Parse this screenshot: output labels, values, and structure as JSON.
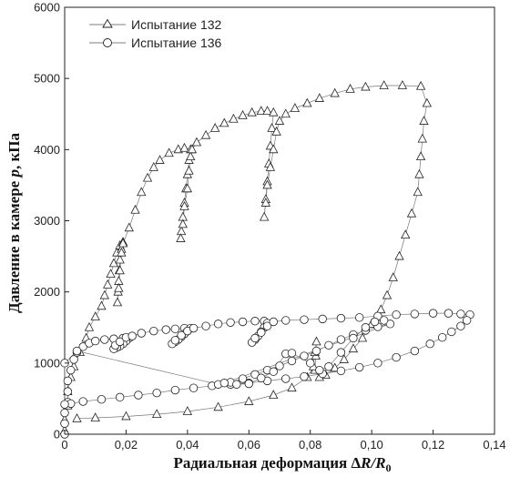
{
  "chart_data": {
    "type": "scatter",
    "xlabel": "Радиальная деформация ΔR/R₀",
    "xlabel_parts": [
      "Радиальная деформация Δ",
      "R",
      "/",
      "R",
      "0"
    ],
    "ylabel": "Давление в камере p, кПа",
    "ylabel_parts": [
      "Давление в камере ",
      "p",
      ", кПа"
    ],
    "xlim": [
      0,
      0.14
    ],
    "ylim": [
      0,
      6000
    ],
    "x_ticks": [
      "0",
      "0,02",
      "0,04",
      "0,06",
      "0,08",
      "0,10",
      "0,12",
      "0,14"
    ],
    "y_ticks": [
      "0",
      "1000",
      "2000",
      "3000",
      "4000",
      "5000",
      "6000"
    ],
    "legend_position": "top-left",
    "series": [
      {
        "name": "Испытание 132",
        "marker": "triangle",
        "points": [
          [
            0.0,
            50
          ],
          [
            0.0,
            200
          ],
          [
            0.001,
            400
          ],
          [
            0.001,
            600
          ],
          [
            0.002,
            800
          ],
          [
            0.003,
            950
          ],
          [
            0.005,
            1150
          ],
          [
            0.007,
            1350
          ],
          [
            0.008,
            1500
          ],
          [
            0.01,
            1650
          ],
          [
            0.012,
            1800
          ],
          [
            0.013,
            1950
          ],
          [
            0.014,
            2100
          ],
          [
            0.015,
            2250
          ],
          [
            0.016,
            2400
          ],
          [
            0.017,
            2550
          ],
          [
            0.018,
            2650
          ],
          [
            0.019,
            2700
          ],
          [
            0.0185,
            2600
          ],
          [
            0.018,
            2450
          ],
          [
            0.0178,
            2300
          ],
          [
            0.0176,
            2150
          ],
          [
            0.0174,
            2000
          ],
          [
            0.0172,
            1850
          ],
          [
            0.0176,
            2050
          ],
          [
            0.018,
            2300
          ],
          [
            0.0185,
            2550
          ],
          [
            0.019,
            2680
          ],
          [
            0.021,
            2900
          ],
          [
            0.023,
            3150
          ],
          [
            0.025,
            3400
          ],
          [
            0.027,
            3600
          ],
          [
            0.029,
            3750
          ],
          [
            0.031,
            3850
          ],
          [
            0.034,
            3950
          ],
          [
            0.037,
            4000
          ],
          [
            0.039,
            4020
          ],
          [
            0.041,
            4000
          ],
          [
            0.0405,
            3850
          ],
          [
            0.04,
            3650
          ],
          [
            0.0395,
            3450
          ],
          [
            0.039,
            3250
          ],
          [
            0.0385,
            3050
          ],
          [
            0.038,
            2850
          ],
          [
            0.0378,
            2750
          ],
          [
            0.0385,
            2950
          ],
          [
            0.039,
            3200
          ],
          [
            0.04,
            3450
          ],
          [
            0.0405,
            3700
          ],
          [
            0.041,
            3900
          ],
          [
            0.0415,
            4000
          ],
          [
            0.043,
            4100
          ],
          [
            0.046,
            4200
          ],
          [
            0.049,
            4300
          ],
          [
            0.052,
            4370
          ],
          [
            0.055,
            4430
          ],
          [
            0.058,
            4480
          ],
          [
            0.061,
            4520
          ],
          [
            0.064,
            4540
          ],
          [
            0.066,
            4540
          ],
          [
            0.068,
            4520
          ],
          [
            0.0675,
            4300
          ],
          [
            0.067,
            4050
          ],
          [
            0.0665,
            3800
          ],
          [
            0.066,
            3550
          ],
          [
            0.0655,
            3300
          ],
          [
            0.065,
            3050
          ],
          [
            0.0655,
            3250
          ],
          [
            0.066,
            3500
          ],
          [
            0.067,
            3750
          ],
          [
            0.068,
            4000
          ],
          [
            0.069,
            4250
          ],
          [
            0.07,
            4400
          ],
          [
            0.072,
            4500
          ],
          [
            0.075,
            4580
          ],
          [
            0.079,
            4650
          ],
          [
            0.083,
            4720
          ],
          [
            0.088,
            4790
          ],
          [
            0.093,
            4850
          ],
          [
            0.098,
            4880
          ],
          [
            0.104,
            4900
          ],
          [
            0.11,
            4900
          ],
          [
            0.116,
            4890
          ],
          [
            0.118,
            4650
          ],
          [
            0.117,
            4400
          ],
          [
            0.1165,
            4150
          ],
          [
            0.116,
            3900
          ],
          [
            0.1155,
            3650
          ],
          [
            0.115,
            3400
          ],
          [
            0.113,
            3100
          ],
          [
            0.111,
            2800
          ],
          [
            0.109,
            2500
          ],
          [
            0.107,
            2200
          ],
          [
            0.105,
            1950
          ],
          [
            0.103,
            1750
          ],
          [
            0.1,
            1550
          ],
          [
            0.097,
            1350
          ],
          [
            0.094,
            1200
          ],
          [
            0.091,
            1050
          ],
          [
            0.088,
            930
          ],
          [
            0.085,
            830
          ],
          [
            0.083,
            800
          ],
          [
            0.0815,
            900
          ],
          [
            0.0818,
            1100
          ],
          [
            0.082,
            1300
          ],
          [
            0.0815,
            1150
          ],
          [
            0.081,
            950
          ],
          [
            0.079,
            800
          ],
          [
            0.074,
            650
          ],
          [
            0.068,
            550
          ],
          [
            0.06,
            460
          ],
          [
            0.05,
            380
          ],
          [
            0.04,
            320
          ],
          [
            0.03,
            280
          ],
          [
            0.02,
            250
          ],
          [
            0.01,
            230
          ],
          [
            0.004,
            220
          ]
        ]
      },
      {
        "name": "Испытание 136",
        "marker": "circle",
        "points": [
          [
            0.0,
            0
          ],
          [
            0.0,
            150
          ],
          [
            0.0,
            300
          ],
          [
            0.001,
            450
          ],
          [
            0.001,
            600
          ],
          [
            0.001,
            750
          ],
          [
            0.002,
            900
          ],
          [
            0.003,
            1050
          ],
          [
            0.004,
            1150
          ],
          [
            0.006,
            1230
          ],
          [
            0.008,
            1280
          ],
          [
            0.01,
            1310
          ],
          [
            0.013,
            1330
          ],
          [
            0.016,
            1340
          ],
          [
            0.019,
            1350
          ],
          [
            0.021,
            1350
          ],
          [
            0.02,
            1310
          ],
          [
            0.019,
            1270
          ],
          [
            0.018,
            1240
          ],
          [
            0.017,
            1220
          ],
          [
            0.016,
            1200
          ],
          [
            0.0165,
            1250
          ],
          [
            0.018,
            1300
          ],
          [
            0.02,
            1360
          ],
          [
            0.022,
            1380
          ],
          [
            0.025,
            1420
          ],
          [
            0.029,
            1450
          ],
          [
            0.033,
            1470
          ],
          [
            0.036,
            1480
          ],
          [
            0.039,
            1490
          ],
          [
            0.041,
            1490
          ],
          [
            0.04,
            1450
          ],
          [
            0.039,
            1410
          ],
          [
            0.038,
            1370
          ],
          [
            0.037,
            1330
          ],
          [
            0.036,
            1300
          ],
          [
            0.035,
            1270
          ],
          [
            0.036,
            1320
          ],
          [
            0.038,
            1390
          ],
          [
            0.04,
            1450
          ],
          [
            0.042,
            1490
          ],
          [
            0.046,
            1520
          ],
          [
            0.05,
            1550
          ],
          [
            0.054,
            1570
          ],
          [
            0.058,
            1580
          ],
          [
            0.062,
            1590
          ],
          [
            0.065,
            1590
          ],
          [
            0.066,
            1560
          ],
          [
            0.065,
            1500
          ],
          [
            0.064,
            1440
          ],
          [
            0.063,
            1380
          ],
          [
            0.062,
            1330
          ],
          [
            0.061,
            1290
          ],
          [
            0.062,
            1350
          ],
          [
            0.064,
            1430
          ],
          [
            0.066,
            1520
          ],
          [
            0.068,
            1580
          ],
          [
            0.072,
            1600
          ],
          [
            0.078,
            1610
          ],
          [
            0.084,
            1620
          ],
          [
            0.09,
            1630
          ],
          [
            0.096,
            1640
          ],
          [
            0.102,
            1660
          ],
          [
            0.108,
            1680
          ],
          [
            0.114,
            1690
          ],
          [
            0.12,
            1700
          ],
          [
            0.125,
            1700
          ],
          [
            0.129,
            1690
          ],
          [
            0.132,
            1680
          ],
          [
            0.131,
            1600
          ],
          [
            0.129,
            1520
          ],
          [
            0.126,
            1440
          ],
          [
            0.123,
            1360
          ],
          [
            0.119,
            1270
          ],
          [
            0.114,
            1170
          ],
          [
            0.108,
            1080
          ],
          [
            0.102,
            1000
          ],
          [
            0.096,
            940
          ],
          [
            0.09,
            890
          ],
          [
            0.084,
            850
          ],
          [
            0.078,
            810
          ],
          [
            0.072,
            780
          ],
          [
            0.066,
            750
          ],
          [
            0.06,
            720
          ],
          [
            0.054,
            700
          ],
          [
            0.048,
            680
          ],
          [
            0.042,
            650
          ],
          [
            0.036,
            620
          ],
          [
            0.03,
            580
          ],
          [
            0.024,
            550
          ],
          [
            0.018,
            520
          ],
          [
            0.012,
            490
          ],
          [
            0.006,
            460
          ],
          [
            0.002,
            430
          ],
          [
            0.0,
            420
          ],
          [
            0.0,
            1000
          ],
          [
            0.004,
            1170
          ],
          [
            0.05,
            700
          ],
          [
            0.054,
            730
          ],
          [
            0.058,
            780
          ],
          [
            0.062,
            840
          ],
          [
            0.066,
            900
          ],
          [
            0.07,
            960
          ],
          [
            0.074,
            1030
          ],
          [
            0.078,
            1100
          ],
          [
            0.082,
            1170
          ],
          [
            0.086,
            1250
          ],
          [
            0.09,
            1330
          ],
          [
            0.094,
            1400
          ],
          [
            0.098,
            1460
          ],
          [
            0.102,
            1510
          ],
          [
            0.106,
            1550
          ],
          [
            0.052,
            720
          ],
          [
            0.056,
            700
          ],
          [
            0.06,
            710
          ],
          [
            0.064,
            790
          ],
          [
            0.068,
            880
          ],
          [
            0.072,
            1130
          ],
          [
            0.074,
            1140
          ],
          [
            0.08,
            1000
          ],
          [
            0.083,
            900
          ],
          [
            0.086,
            950
          ],
          [
            0.09,
            1150
          ],
          [
            0.094,
            1350
          ],
          [
            0.098,
            1500
          ],
          [
            0.101,
            1580
          ],
          [
            0.104,
            1600
          ]
        ]
      }
    ]
  }
}
